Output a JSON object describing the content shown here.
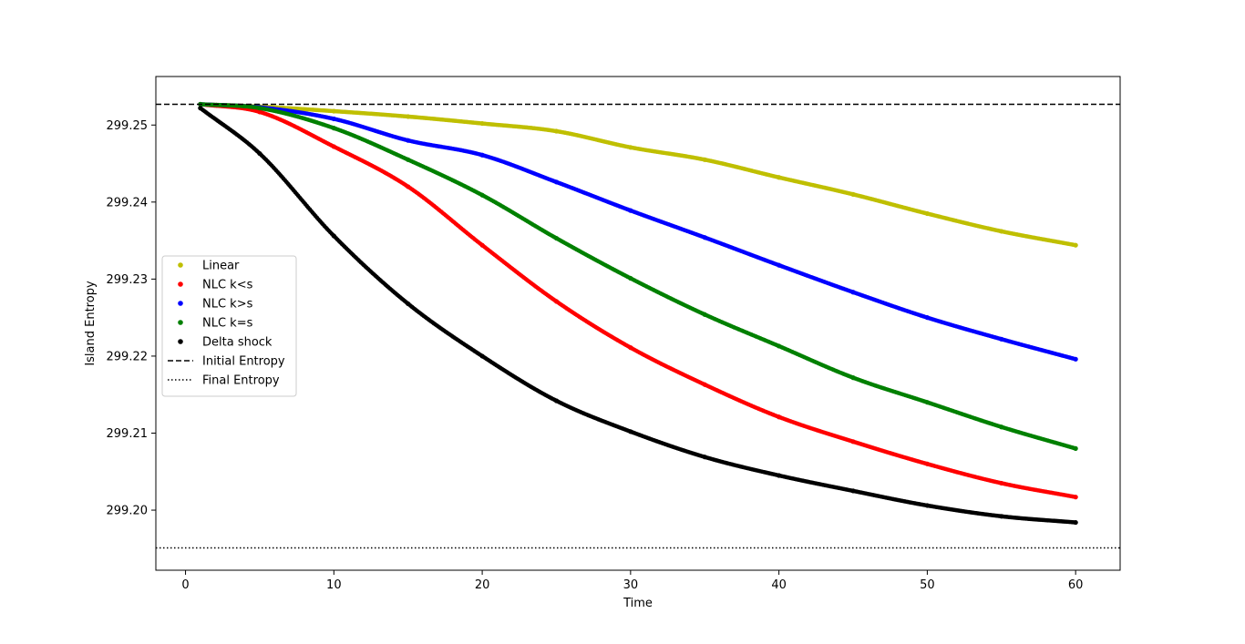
{
  "chart_data": {
    "type": "scatter",
    "title": "",
    "xlabel": "Time",
    "ylabel": "Island Entropy",
    "xlim": [
      -2,
      63
    ],
    "ylim": [
      299.1922,
      299.2563
    ],
    "xticks": [
      0,
      10,
      20,
      30,
      40,
      50,
      60
    ],
    "yticks": [
      299.2,
      299.21,
      299.22,
      299.23,
      299.24,
      299.25
    ],
    "xtick_labels": [
      "0",
      "10",
      "20",
      "30",
      "40",
      "50",
      "60"
    ],
    "ytick_labels": [
      "299.20",
      "299.21",
      "299.22",
      "299.23",
      "299.24",
      "299.25"
    ],
    "grid": false,
    "legend_position": "center-left",
    "series": [
      {
        "name": "Linear",
        "kind": "points",
        "color": "#bfbf00",
        "x": [
          1,
          5,
          10,
          15,
          20,
          25,
          30,
          35,
          40,
          45,
          50,
          55,
          60
        ],
        "y": [
          299.2527,
          299.2524,
          299.2518,
          299.2511,
          299.2502,
          299.2492,
          299.2471,
          299.2455,
          299.2432,
          299.241,
          299.2385,
          299.2362,
          299.2344
        ]
      },
      {
        "name": "NLC k<s",
        "kind": "points",
        "color": "#ff0000",
        "x": [
          1,
          5,
          10,
          15,
          20,
          25,
          30,
          35,
          40,
          45,
          50,
          55,
          60
        ],
        "y": [
          299.2527,
          299.2517,
          299.2472,
          299.242,
          299.2344,
          299.2271,
          299.2211,
          299.2163,
          299.2121,
          299.2089,
          299.206,
          299.2035,
          299.2017
        ]
      },
      {
        "name": "NLC k>s",
        "kind": "points",
        "color": "#0000ff",
        "x": [
          1,
          5,
          10,
          15,
          20,
          25,
          30,
          35,
          40,
          45,
          50,
          55,
          60
        ],
        "y": [
          299.2527,
          299.2523,
          299.2508,
          299.248,
          299.2461,
          299.2426,
          299.2389,
          299.2354,
          299.2318,
          299.2283,
          299.225,
          299.2222,
          299.2196
        ]
      },
      {
        "name": "NLC k=s",
        "kind": "points",
        "color": "#008000",
        "x": [
          1,
          5,
          10,
          15,
          20,
          25,
          30,
          35,
          40,
          45,
          50,
          55,
          60
        ],
        "y": [
          299.2527,
          299.2522,
          299.2496,
          299.2455,
          299.2409,
          299.2353,
          299.2301,
          299.2254,
          299.2213,
          299.2172,
          299.214,
          299.2108,
          299.208
        ]
      },
      {
        "name": "Delta shock",
        "kind": "points",
        "color": "#000000",
        "x": [
          1,
          5,
          10,
          15,
          20,
          25,
          30,
          35,
          40,
          45,
          50,
          55,
          60
        ],
        "y": [
          299.2522,
          299.2463,
          299.2356,
          299.2268,
          299.22,
          299.2142,
          299.2102,
          299.2069,
          299.2045,
          299.2025,
          299.2006,
          299.1992,
          299.1984
        ]
      },
      {
        "name": "Initial Entropy",
        "kind": "hline",
        "style": "dashed",
        "color": "#000000",
        "y": 299.2527
      },
      {
        "name": "Final Entropy",
        "kind": "hline",
        "style": "dotted",
        "color": "#000000",
        "y": 299.1951
      }
    ]
  }
}
